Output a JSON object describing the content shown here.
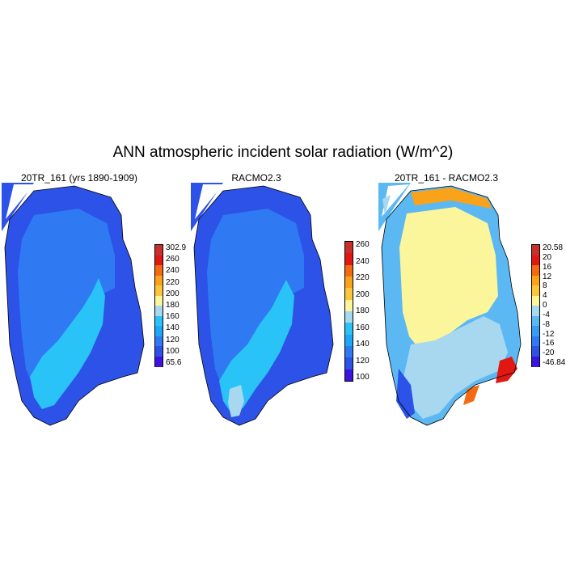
{
  "title": "ANN atmospheric incident solar radiation (W/m^2)",
  "panels": [
    {
      "title": "20TR_161 (yrs 1890-1909)",
      "colorbar": {
        "colors": [
          "#3b14e0",
          "#2c52e8",
          "#2f7af3",
          "#1ea6f7",
          "#2ac3f8",
          "#a7d8f0",
          "#fbf59c",
          "#fbc63b",
          "#f9a21a",
          "#f36a12",
          "#e11713",
          "#c8302b"
        ],
        "labels": [
          "302.9",
          "260",
          "240",
          "220",
          "200",
          "180",
          "160",
          "140",
          "120",
          "100",
          "65.6"
        ]
      }
    },
    {
      "title": "RACMO2.3",
      "colorbar": {
        "colors": [
          "#3b14e0",
          "#2c52e8",
          "#2f7af3",
          "#1ea6f7",
          "#2ac3f8",
          "#a7d8f0",
          "#fbf59c",
          "#fbc63b",
          "#f9a21a",
          "#f36a12",
          "#e11713",
          "#c8302b"
        ],
        "labels": [
          "260",
          "240",
          "220",
          "200",
          "180",
          "160",
          "140",
          "120",
          "100"
        ]
      }
    },
    {
      "title": "20TR_161 - RACMO2.3",
      "colorbar": {
        "colors": [
          "#3b14e0",
          "#2c52e8",
          "#2f7af3",
          "#3a9bf4",
          "#5bb8f2",
          "#a7d8f0",
          "#fbf59c",
          "#fbc63b",
          "#f9a21a",
          "#f36a12",
          "#e11713",
          "#c8302b"
        ],
        "labels": [
          "20.58",
          "20",
          "16",
          "12",
          "8",
          "4",
          "0",
          "-4",
          "-8",
          "-12",
          "-16",
          "-20",
          "-46.84"
        ]
      }
    }
  ],
  "chart_data": {
    "type": "heatmap",
    "title": "ANN atmospheric incident solar radiation (W/m^2)",
    "subplots": [
      {
        "title": "20TR_161 (yrs 1890-1909)",
        "levels": [
          65.6,
          100,
          120,
          140,
          160,
          180,
          200,
          220,
          240,
          260,
          302.9
        ],
        "dominant_ranges": {
          "south_and_west_coast": "160-180",
          "interior": "120-140",
          "north_and_east_margins": "100-120"
        }
      },
      {
        "title": "RACMO2.3",
        "levels": [
          100,
          120,
          140,
          160,
          180,
          200,
          220,
          240,
          260
        ],
        "dominant_ranges": {
          "south_and_west_coast": "160-180",
          "south_tip_patch": "180-200",
          "interior": "120-140",
          "north_and_east_margins": "100-120"
        }
      },
      {
        "title": "20TR_161 - RACMO2.3",
        "levels": [
          -46.84,
          -20,
          -16,
          -12,
          -8,
          -4,
          0,
          4,
          8,
          12,
          16,
          20,
          20.58
        ],
        "dominant_ranges": {
          "interior": "0 to 4",
          "south": "-4 to 0",
          "coastal_margins": "-20 to -4",
          "east_coast_edges": "8 to 20.58"
        }
      }
    ]
  }
}
